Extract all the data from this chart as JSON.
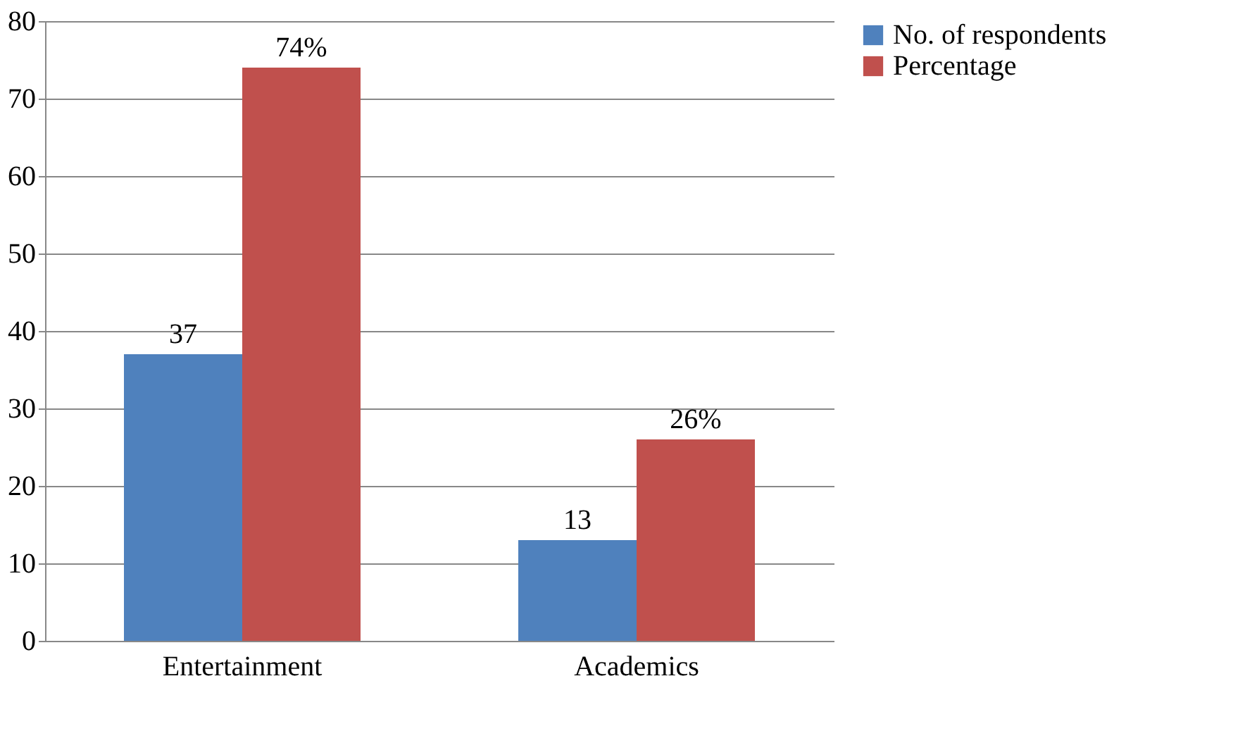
{
  "chart_data": {
    "type": "bar",
    "categories": [
      "Entertainment",
      "Academics"
    ],
    "series": [
      {
        "name": "No. of respondents",
        "color": "#4f81bd",
        "values": [
          37,
          13
        ],
        "value_labels": [
          "37",
          "13"
        ]
      },
      {
        "name": "Percentage",
        "color": "#c0504d",
        "values": [
          74,
          26
        ],
        "value_labels": [
          "74%",
          "26%"
        ]
      }
    ],
    "ylim": [
      0,
      80
    ],
    "yticks": [
      0,
      10,
      20,
      30,
      40,
      50,
      60,
      70,
      80
    ],
    "grid": "y",
    "legend": "right"
  }
}
